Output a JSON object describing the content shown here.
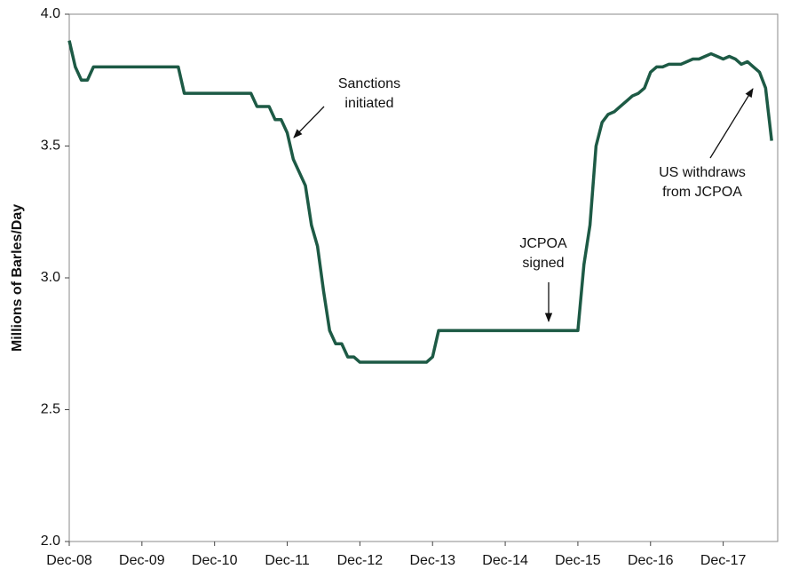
{
  "chart_data": {
    "type": "line",
    "y_axis_label": "Millions of Barles/Day",
    "categories": [
      "Dec-08",
      null,
      null,
      null,
      null,
      null,
      null,
      null,
      null,
      null,
      null,
      null,
      "Dec-09",
      null,
      null,
      null,
      null,
      null,
      null,
      null,
      null,
      null,
      null,
      null,
      "Dec-10",
      null,
      null,
      null,
      null,
      null,
      null,
      null,
      null,
      null,
      null,
      null,
      "Dec-11",
      null,
      null,
      null,
      null,
      null,
      null,
      null,
      null,
      null,
      null,
      null,
      "Dec-12",
      null,
      null,
      null,
      null,
      null,
      null,
      null,
      null,
      null,
      null,
      null,
      "Dec-13",
      null,
      null,
      null,
      null,
      null,
      null,
      null,
      null,
      null,
      null,
      null,
      "Dec-14",
      null,
      null,
      null,
      null,
      null,
      null,
      null,
      null,
      null,
      null,
      null,
      "Dec-15",
      null,
      null,
      null,
      null,
      null,
      null,
      null,
      null,
      null,
      null,
      null,
      "Dec-16",
      null,
      null,
      null,
      null,
      null,
      null,
      null,
      null,
      null,
      null,
      null,
      "Dec-17",
      null,
      null,
      null,
      null,
      null,
      null,
      null,
      null
    ],
    "series": [
      {
        "color": "#1d5a45",
        "values": [
          3.9,
          3.8,
          3.75,
          3.75,
          3.8,
          3.8,
          3.8,
          3.8,
          3.8,
          3.8,
          3.8,
          3.8,
          3.8,
          3.8,
          3.8,
          3.8,
          3.8,
          3.8,
          3.8,
          3.7,
          3.7,
          3.7,
          3.7,
          3.7,
          3.7,
          3.7,
          3.7,
          3.7,
          3.7,
          3.7,
          3.7,
          3.65,
          3.65,
          3.65,
          3.6,
          3.6,
          3.55,
          3.45,
          3.4,
          3.35,
          3.2,
          3.12,
          2.95,
          2.8,
          2.75,
          2.75,
          2.7,
          2.7,
          2.68,
          2.68,
          2.68,
          2.68,
          2.68,
          2.68,
          2.68,
          2.68,
          2.68,
          2.68,
          2.68,
          2.68,
          2.7,
          2.8,
          2.8,
          2.8,
          2.8,
          2.8,
          2.8,
          2.8,
          2.8,
          2.8,
          2.8,
          2.8,
          2.8,
          2.8,
          2.8,
          2.8,
          2.8,
          2.8,
          2.8,
          2.8,
          2.8,
          2.8,
          2.8,
          2.8,
          2.8,
          3.05,
          3.2,
          3.5,
          3.59,
          3.62,
          3.63,
          3.65,
          3.67,
          3.69,
          3.7,
          3.72,
          3.78,
          3.8,
          3.8,
          3.81,
          3.81,
          3.81,
          3.82,
          3.83,
          3.83,
          3.84,
          3.85,
          3.84,
          3.83,
          3.84,
          3.83,
          3.81,
          3.82,
          3.8,
          3.78,
          3.72,
          3.52
        ]
      }
    ],
    "ylim": [
      2.0,
      4.0
    ],
    "yticks": [
      {
        "value": 2,
        "label": "2.0"
      },
      2.5,
      {
        "value": 3,
        "label": "3.0"
      },
      3.5,
      {
        "value": 4,
        "label": "4.0"
      }
    ],
    "grid": false,
    "annotations": [
      {
        "lines": [
          "Sanctions",
          "initiated"
        ]
      },
      {
        "lines": [
          "JCPOA",
          "signed"
        ]
      },
      {
        "lines": [
          "US withdraws",
          "from JCPOA"
        ]
      }
    ]
  }
}
